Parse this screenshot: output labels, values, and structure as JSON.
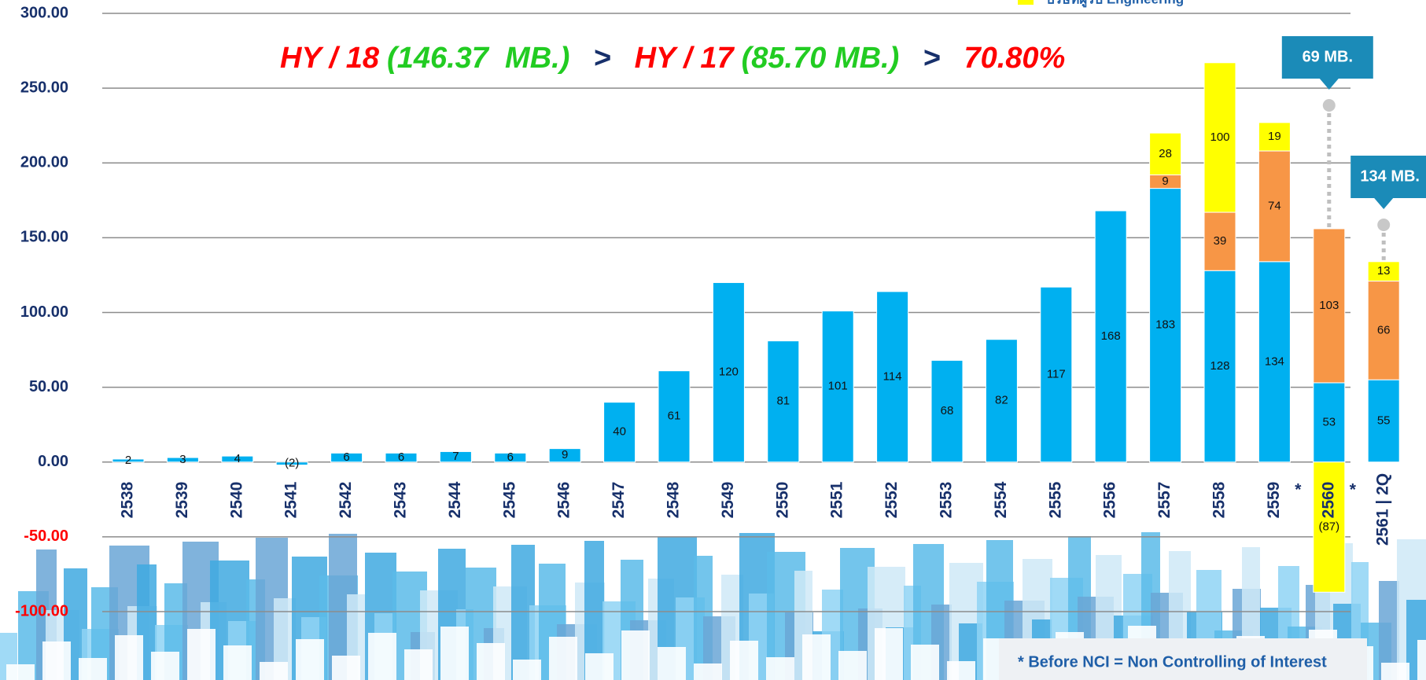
{
  "chart_data": {
    "type": "bar",
    "stacked": true,
    "headline": [
      {
        "text": "HY / 18",
        "color": "#ff0000"
      },
      {
        "text": "(146.37  MB.)",
        "color": "#22cc22"
      },
      {
        "text": ">",
        "color": "#17306b"
      },
      {
        "text": "HY / 17",
        "color": "#ff0000"
      },
      {
        "text": "(85.70 MB.)",
        "color": "#22cc22"
      },
      {
        "text": ">",
        "color": "#17306b"
      },
      {
        "text": "70.80%",
        "color": "#ff0000"
      }
    ],
    "categories": [
      "2538",
      "2539",
      "2540",
      "2541",
      "2542",
      "2543",
      "2544",
      "2545",
      "2546",
      "2547",
      "2548",
      "2549",
      "2550",
      "2551",
      "2552",
      "2553",
      "2554",
      "2555",
      "2556",
      "2557",
      "2558",
      "2559",
      "2560",
      "2561 | 2Q"
    ],
    "category_marks": [
      null,
      null,
      null,
      null,
      null,
      null,
      null,
      null,
      null,
      null,
      null,
      null,
      null,
      null,
      null,
      null,
      null,
      null,
      null,
      null,
      null,
      "*",
      "*",
      null
    ],
    "series": [
      {
        "color": "#00b0f0",
        "values": [
          2,
          3,
          4,
          -2,
          6,
          6,
          7,
          6,
          9,
          40,
          61,
          120,
          81,
          101,
          114,
          68,
          82,
          117,
          168,
          183,
          128,
          134,
          53,
          55
        ],
        "value_labels": [
          "2",
          "3",
          "4",
          "(2)",
          "6",
          "6",
          "7",
          "6",
          "9",
          "40",
          "61",
          "120",
          "81",
          "101",
          "114",
          "68",
          "82",
          "117",
          "168",
          "183",
          "128",
          "134",
          "53",
          "55"
        ]
      },
      {
        "color": "#f79646",
        "values": [
          null,
          null,
          null,
          null,
          null,
          null,
          null,
          null,
          null,
          null,
          null,
          null,
          null,
          null,
          null,
          null,
          null,
          null,
          null,
          9,
          39,
          74,
          103,
          66
        ]
      },
      {
        "name": "บริษัทผู้รับ Engineering",
        "color": "#ffff00",
        "values": [
          null,
          null,
          null,
          null,
          null,
          null,
          null,
          null,
          null,
          null,
          null,
          null,
          null,
          null,
          null,
          null,
          null,
          null,
          null,
          28,
          100,
          19,
          -87,
          13
        ],
        "value_labels": [
          null,
          null,
          null,
          null,
          null,
          null,
          null,
          null,
          null,
          null,
          null,
          null,
          null,
          null,
          null,
          null,
          null,
          null,
          null,
          "28",
          "100",
          "19",
          "(87)",
          "13"
        ]
      }
    ],
    "callouts": [
      {
        "category": 22,
        "text": "69 MB."
      },
      {
        "category": 23,
        "text": "134 MB."
      }
    ],
    "ylim": [
      -100,
      300
    ],
    "yticks": [
      {
        "value": -100,
        "label": "-100.00"
      },
      {
        "value": -50,
        "label": "-50.00"
      },
      {
        "value": 0,
        "label": "0.00"
      },
      {
        "value": 50,
        "label": "50.00"
      },
      {
        "value": 100,
        "label": "100.00"
      },
      {
        "value": 150,
        "label": "150.00"
      },
      {
        "value": 200,
        "label": "200.00"
      },
      {
        "value": 250,
        "label": "250.00"
      },
      {
        "value": 300,
        "label": "300.00"
      }
    ],
    "grid": true,
    "footnote": "* Before NCI = Non Controlling of Interest"
  }
}
